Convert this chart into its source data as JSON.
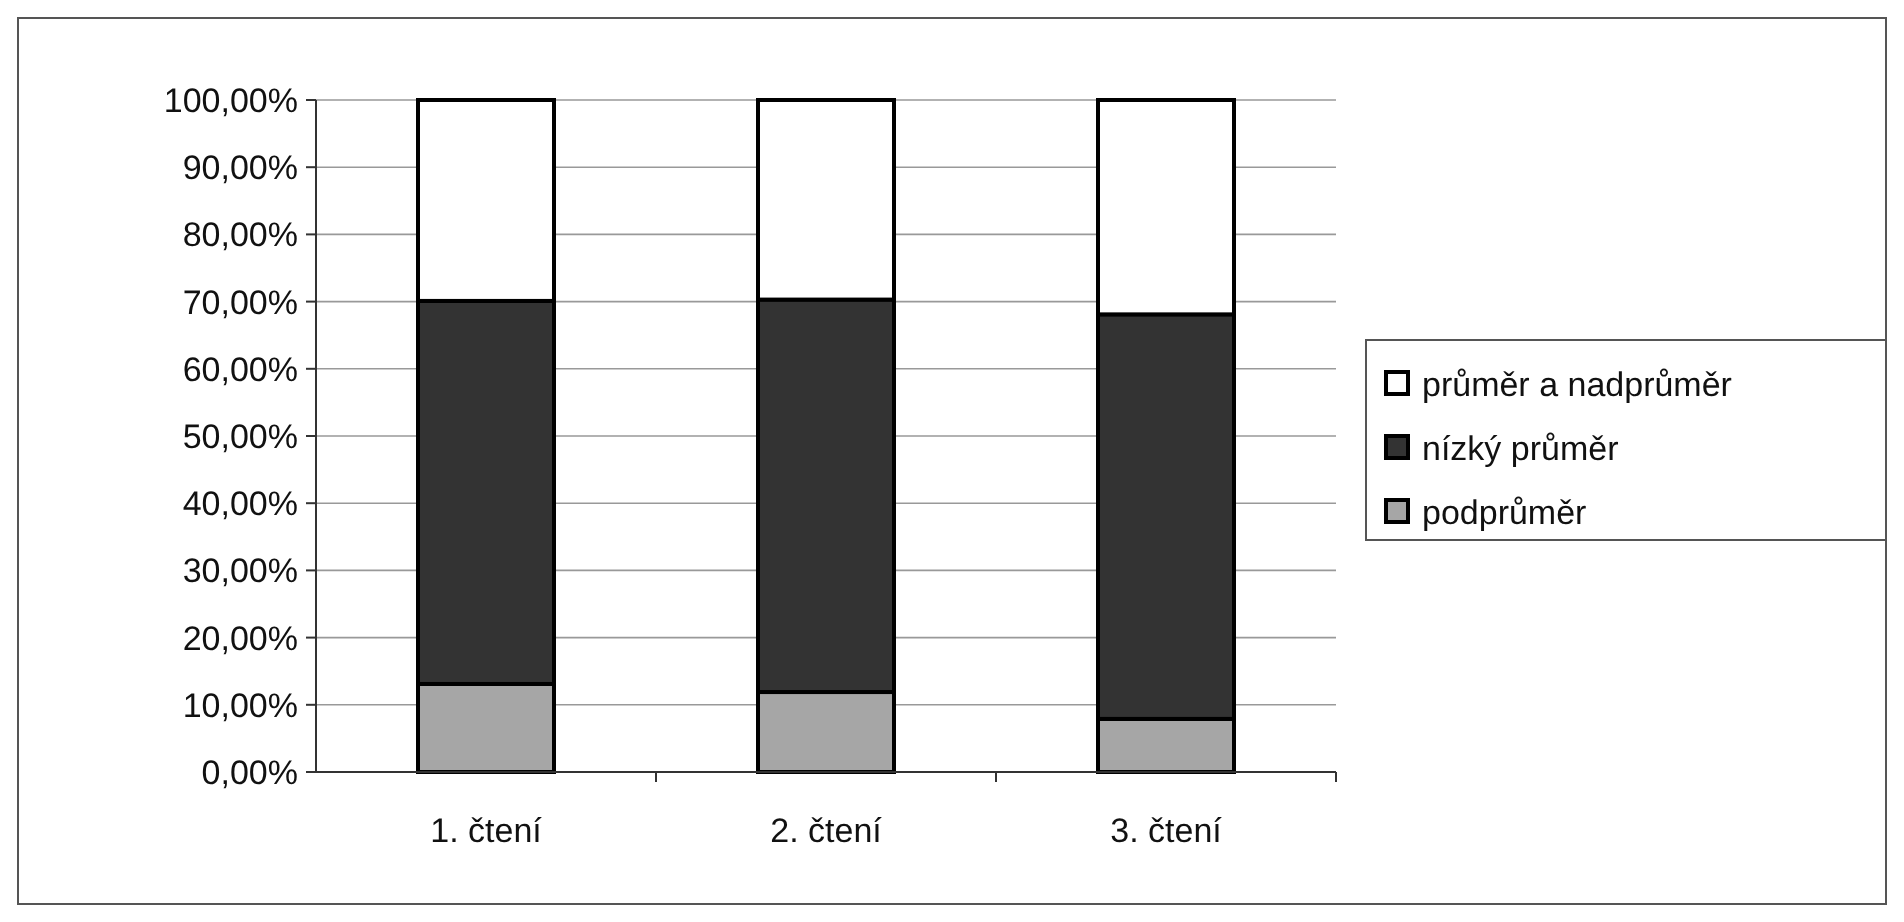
{
  "chart_data": {
    "type": "bar",
    "stacked": true,
    "categories": [
      "1. čtení",
      "2. čtení",
      "3. čtení"
    ],
    "series": [
      {
        "name": "podprůměr",
        "color": "#a6a6a6",
        "values": [
          13.1,
          11.9,
          7.9
        ]
      },
      {
        "name": "nízký průměr",
        "color": "#333333",
        "values": [
          57.0,
          58.4,
          60.2
        ]
      },
      {
        "name": "průměr a nadprůměr",
        "color": "#ffffff",
        "values": [
          29.9,
          29.7,
          31.9
        ]
      }
    ],
    "ylim": [
      0,
      100
    ],
    "yticks": [
      {
        "value": 0,
        "label": "0,00%"
      },
      {
        "value": 10,
        "label": "10,00%"
      },
      {
        "value": 20,
        "label": "20,00%"
      },
      {
        "value": 30,
        "label": "30,00%"
      },
      {
        "value": 40,
        "label": "40,00%"
      },
      {
        "value": 50,
        "label": "50,00%"
      },
      {
        "value": 60,
        "label": "60,00%"
      },
      {
        "value": 70,
        "label": "70,00%"
      },
      {
        "value": 80,
        "label": "80,00%"
      },
      {
        "value": 90,
        "label": "90,00%"
      },
      {
        "value": 100,
        "label": "100,00%"
      }
    ],
    "grid": "y",
    "legend": "right"
  }
}
